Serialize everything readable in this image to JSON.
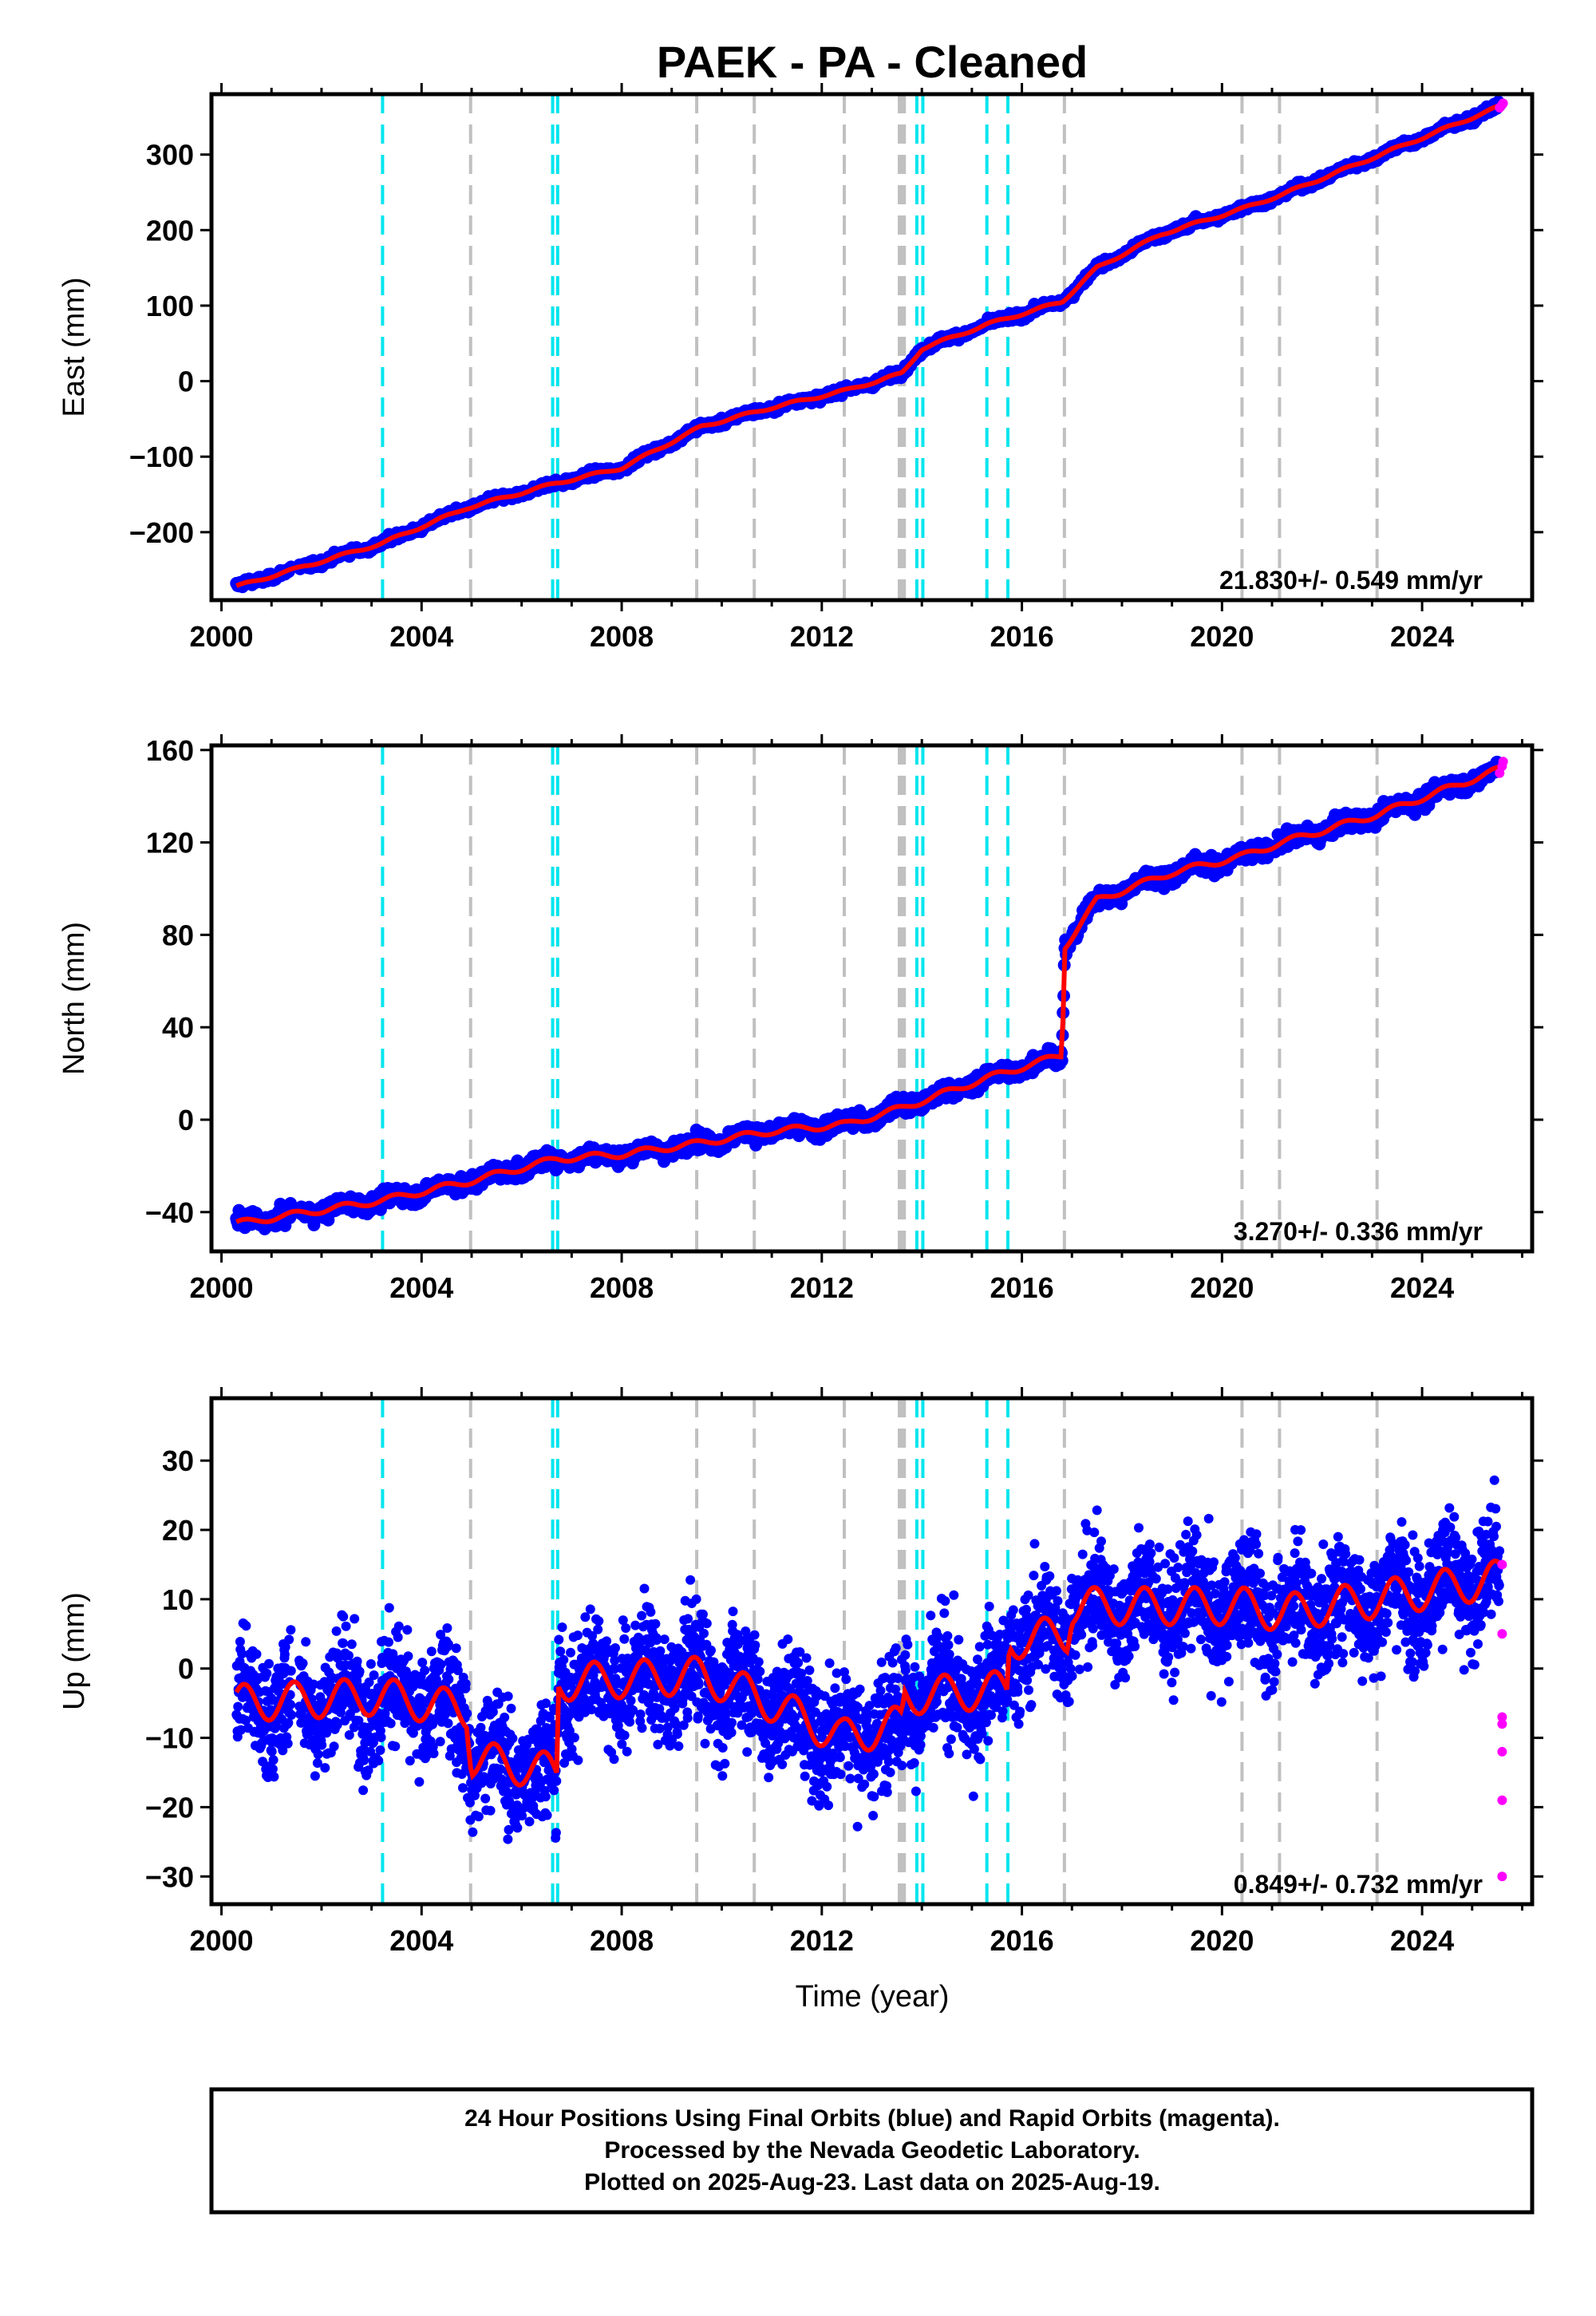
{
  "title": "PAEK  - PA - Cleaned",
  "x_label": "Time (year)",
  "x_ticks": [
    2000,
    2004,
    2008,
    2012,
    2016,
    2020,
    2024
  ],
  "colors": {
    "final_orbits": "#0000ff",
    "rapid_orbits": "#ff00ff",
    "model": "#ff0000",
    "antenna_change": "#00e5ee",
    "other_event": "#c0c0c0"
  },
  "events": {
    "cyan": [
      2003.22,
      2006.62,
      2006.72,
      2013.9,
      2014.02,
      2015.3,
      2015.72
    ],
    "gray": [
      2004.98,
      2009.5,
      2010.65,
      2012.45,
      2013.55,
      2013.6,
      2013.65,
      2016.85,
      2020.4,
      2021.15,
      2023.1
    ]
  },
  "footer": {
    "line1": "24 Hour Positions Using Final Orbits (blue) and Rapid Orbits (magenta).",
    "line2": "Processed by the Nevada Geodetic Laboratory.",
    "line3": "Plotted on 2025-Aug-23. Last data on 2025-Aug-19."
  },
  "chart_data": [
    {
      "type": "scatter",
      "component": "east",
      "ylabel": "East (mm)",
      "xlim": [
        1999.8,
        2026.2
      ],
      "ylim": [
        -290,
        380
      ],
      "yticks": [
        300,
        200,
        100,
        0,
        -100,
        -200
      ],
      "ytick_labels": [
        "300",
        "200",
        "100",
        "0",
        "−100",
        "−200"
      ],
      "rate_text": "21.830+/- 0.549 mm/yr",
      "noise_mm": 4,
      "trend_points": [
        [
          2000.3,
          -272
        ],
        [
          2003.2,
          -215
        ],
        [
          2004.9,
          -168
        ],
        [
          2006.7,
          -135
        ],
        [
          2008,
          -115
        ],
        [
          2009.6,
          -60
        ],
        [
          2011,
          -35
        ],
        [
          2012.5,
          -12
        ],
        [
          2013.6,
          10
        ],
        [
          2014,
          43
        ],
        [
          2015.3,
          75
        ],
        [
          2016.8,
          105
        ],
        [
          2017.5,
          150
        ],
        [
          2018.8,
          195
        ],
        [
          2020.4,
          228
        ],
        [
          2021.2,
          247
        ],
        [
          2023.1,
          298
        ],
        [
          2025.6,
          365
        ]
      ],
      "rapid_points": [
        [
          2025.55,
          362
        ],
        [
          2025.6,
          366
        ],
        [
          2025.62,
          368
        ]
      ]
    },
    {
      "type": "scatter",
      "component": "north",
      "ylabel": "North (mm)",
      "xlim": [
        1999.8,
        2026.2
      ],
      "ylim": [
        -57,
        162
      ],
      "yticks": [
        160,
        120,
        80,
        40,
        0,
        -40
      ],
      "ytick_labels": [
        "160",
        "120",
        "80",
        "40",
        "0",
        "−40"
      ],
      "rate_text": "3.270+/- 0.336 mm/yr",
      "noise_mm": 3,
      "trend_points": [
        [
          2000.3,
          -45
        ],
        [
          2003.2,
          -35
        ],
        [
          2004.9,
          -27
        ],
        [
          2006.7,
          -17
        ],
        [
          2008,
          -15
        ],
        [
          2009.6,
          -10
        ],
        [
          2011,
          -5
        ],
        [
          2012.5,
          -2
        ],
        [
          2013.6,
          5
        ],
        [
          2015.3,
          18
        ],
        [
          2016.8,
          28
        ],
        [
          2016.86,
          75
        ],
        [
          2017.5,
          95
        ],
        [
          2019,
          107
        ],
        [
          2020.4,
          114
        ],
        [
          2021.2,
          120
        ],
        [
          2023.1,
          132
        ],
        [
          2025.6,
          152
        ]
      ],
      "rapid_points": [
        [
          2025.55,
          150
        ],
        [
          2025.6,
          153
        ],
        [
          2025.62,
          155
        ]
      ]
    },
    {
      "type": "scatter",
      "component": "up",
      "ylabel": "Up (mm)",
      "xlabel": "Time (year)",
      "xlim": [
        1999.8,
        2026.2
      ],
      "ylim": [
        -34,
        39
      ],
      "yticks": [
        30,
        20,
        10,
        0,
        -10,
        -20,
        -30
      ],
      "ytick_labels": [
        "30",
        "20",
        "10",
        "0",
        "−10",
        "−20",
        "−30"
      ],
      "rate_text": "0.849+/- 0.732 mm/yr",
      "noise_mm": 7,
      "trend_points": [
        [
          2000.3,
          -5
        ],
        [
          2003.2,
          -4
        ],
        [
          2004.9,
          -6
        ],
        [
          2005.0,
          -13
        ],
        [
          2006.7,
          -15
        ],
        [
          2006.72,
          -2
        ],
        [
          2009.6,
          -1
        ],
        [
          2010.7,
          -4
        ],
        [
          2012.4,
          -10
        ],
        [
          2013.6,
          -8
        ],
        [
          2013.65,
          -4
        ],
        [
          2015.7,
          -3
        ],
        [
          2015.75,
          4
        ],
        [
          2016.9,
          5
        ],
        [
          2017,
          9
        ],
        [
          2020.4,
          9
        ],
        [
          2021.2,
          8
        ],
        [
          2023.1,
          10
        ],
        [
          2025.6,
          13
        ]
      ],
      "rapid_points": [
        [
          2025.6,
          15
        ],
        [
          2025.6,
          5
        ],
        [
          2025.6,
          -7
        ],
        [
          2025.6,
          -8
        ],
        [
          2025.6,
          -12
        ],
        [
          2025.6,
          -19
        ],
        [
          2025.6,
          -30
        ]
      ]
    }
  ]
}
